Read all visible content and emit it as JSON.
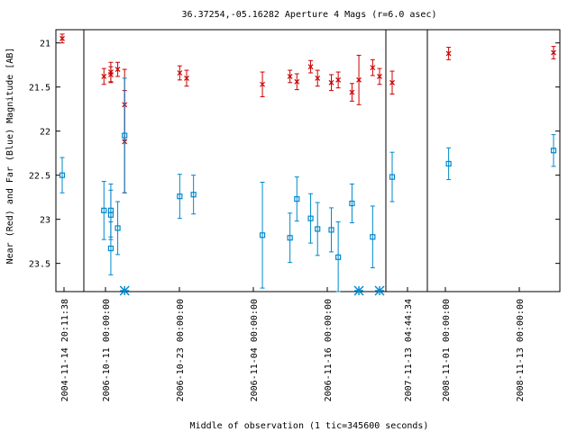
{
  "chart_data": {
    "type": "scatter",
    "title": "36.37254,-05.16282   Aperture 4 Mags (r=6.0 asec)",
    "xlabel": "Middle of observation (1 tic=345600 seconds)",
    "ylabel": "Near (Red) and Far (Blue) Magnitude [AB]",
    "y_axis": {
      "min": 20.85,
      "max": 23.82,
      "inverted": true,
      "ticks": [
        21,
        21.5,
        22,
        22.5,
        23,
        23.5
      ]
    },
    "x_tick_labels": [
      "2004-11-14 20:11:38",
      "2006-10-11 00:00:00",
      "2006-10-23 00:00:00",
      "2006-11-04 00:00:00",
      "2006-11-16 00:00:00",
      "2007-11-13 04:44:34",
      "2008-11-01 00:00:00",
      "2008-11-13 00:00:00"
    ],
    "panels": [
      {
        "start": "2004-11-14",
        "end": "2004-11-15"
      },
      {
        "start": "2006-10-10",
        "end": "2006-11-21"
      },
      {
        "start": "2007-11-13",
        "end": "2007-11-14"
      },
      {
        "start": "2008-10-30",
        "end": "2008-11-15"
      }
    ],
    "series": [
      {
        "color": "#cc0000",
        "marker": "x",
        "points": [
          {
            "x": "2004-11-14",
            "y": 20.95,
            "err": 0.05
          },
          {
            "x": "2006-10-12",
            "y": 21.38,
            "err": 0.09
          },
          {
            "x": "2006-10-13",
            "y": 21.36,
            "err": 0.09
          },
          {
            "x": "2006-10-13",
            "y": 21.33,
            "err": 0.11
          },
          {
            "x": "2006-10-14",
            "y": 21.3,
            "err": 0.08
          },
          {
            "x": "2006-10-15",
            "y": 21.7,
            "err": 0.4
          },
          {
            "x": "2006-10-15",
            "y": 22.12,
            "err": 0.58
          },
          {
            "x": "2006-10-23",
            "y": 21.34,
            "err": 0.08
          },
          {
            "x": "2006-10-24",
            "y": 21.4,
            "err": 0.09
          },
          {
            "x": "2006-11-04",
            "y": 21.47,
            "err": 0.14
          },
          {
            "x": "2006-11-08",
            "y": 21.38,
            "err": 0.07
          },
          {
            "x": "2006-11-09",
            "y": 21.44,
            "err": 0.09
          },
          {
            "x": "2006-11-11",
            "y": 21.27,
            "err": 0.07
          },
          {
            "x": "2006-11-12",
            "y": 21.4,
            "err": 0.09
          },
          {
            "x": "2006-11-14",
            "y": 21.45,
            "err": 0.09
          },
          {
            "x": "2006-11-15",
            "y": 21.42,
            "err": 0.09
          },
          {
            "x": "2006-11-17",
            "y": 21.56,
            "err": 0.1
          },
          {
            "x": "2006-11-18",
            "y": 21.42,
            "err": 0.28
          },
          {
            "x": "2006-11-20",
            "y": 21.28,
            "err": 0.09
          },
          {
            "x": "2006-11-21",
            "y": 21.38,
            "err": 0.09
          },
          {
            "x": "2007-11-13",
            "y": 21.45,
            "err": 0.13
          },
          {
            "x": "2008-11-01",
            "y": 21.12,
            "err": 0.07
          },
          {
            "x": "2008-11-15",
            "y": 21.11,
            "err": 0.07
          }
        ]
      },
      {
        "color": "#0088cc",
        "marker": "square",
        "points": [
          {
            "x": "2004-11-14",
            "y": 22.5,
            "err": 0.2
          },
          {
            "x": "2006-10-12",
            "y": 22.9,
            "err": 0.33
          },
          {
            "x": "2006-10-13",
            "y": 22.95,
            "err": 0.28
          },
          {
            "x": "2006-10-13",
            "y": 23.33,
            "err": 0.3
          },
          {
            "x": "2006-10-13",
            "y": 22.9,
            "err": 0.3
          },
          {
            "x": "2006-10-14",
            "y": 23.1,
            "err": 0.3
          },
          {
            "x": "2006-10-15",
            "y": 22.05,
            "err": 0.65
          },
          {
            "x": "2006-10-23",
            "y": 22.74,
            "err": 0.25
          },
          {
            "x": "2006-10-25",
            "y": 22.72,
            "err": 0.22
          },
          {
            "x": "2006-11-04",
            "y": 23.18,
            "err": 0.6
          },
          {
            "x": "2006-11-08",
            "y": 23.21,
            "err": 0.28
          },
          {
            "x": "2006-11-09",
            "y": 22.77,
            "err": 0.25
          },
          {
            "x": "2006-11-11",
            "y": 22.99,
            "err": 0.28
          },
          {
            "x": "2006-11-12",
            "y": 23.11,
            "err": 0.3
          },
          {
            "x": "2006-11-14",
            "y": 23.12,
            "err": 0.25
          },
          {
            "x": "2006-11-15",
            "y": 23.43,
            "err": 0.4
          },
          {
            "x": "2006-11-17",
            "y": 22.82,
            "err": 0.22
          },
          {
            "x": "2006-11-20",
            "y": 23.2,
            "err": 0.35
          },
          {
            "x": "2007-11-13",
            "y": 22.52,
            "err": 0.28
          },
          {
            "x": "2008-11-01",
            "y": 22.37,
            "err": 0.18
          },
          {
            "x": "2008-11-15",
            "y": 22.22,
            "err": 0.18
          }
        ]
      },
      {
        "color": "#0088cc",
        "marker": "asterisk",
        "name": "",
        "y_position": "bottom-axis",
        "points": [
          {
            "x": "2006-10-15"
          },
          {
            "x": "2006-11-18"
          },
          {
            "x": "2006-11-21"
          }
        ]
      }
    ]
  }
}
